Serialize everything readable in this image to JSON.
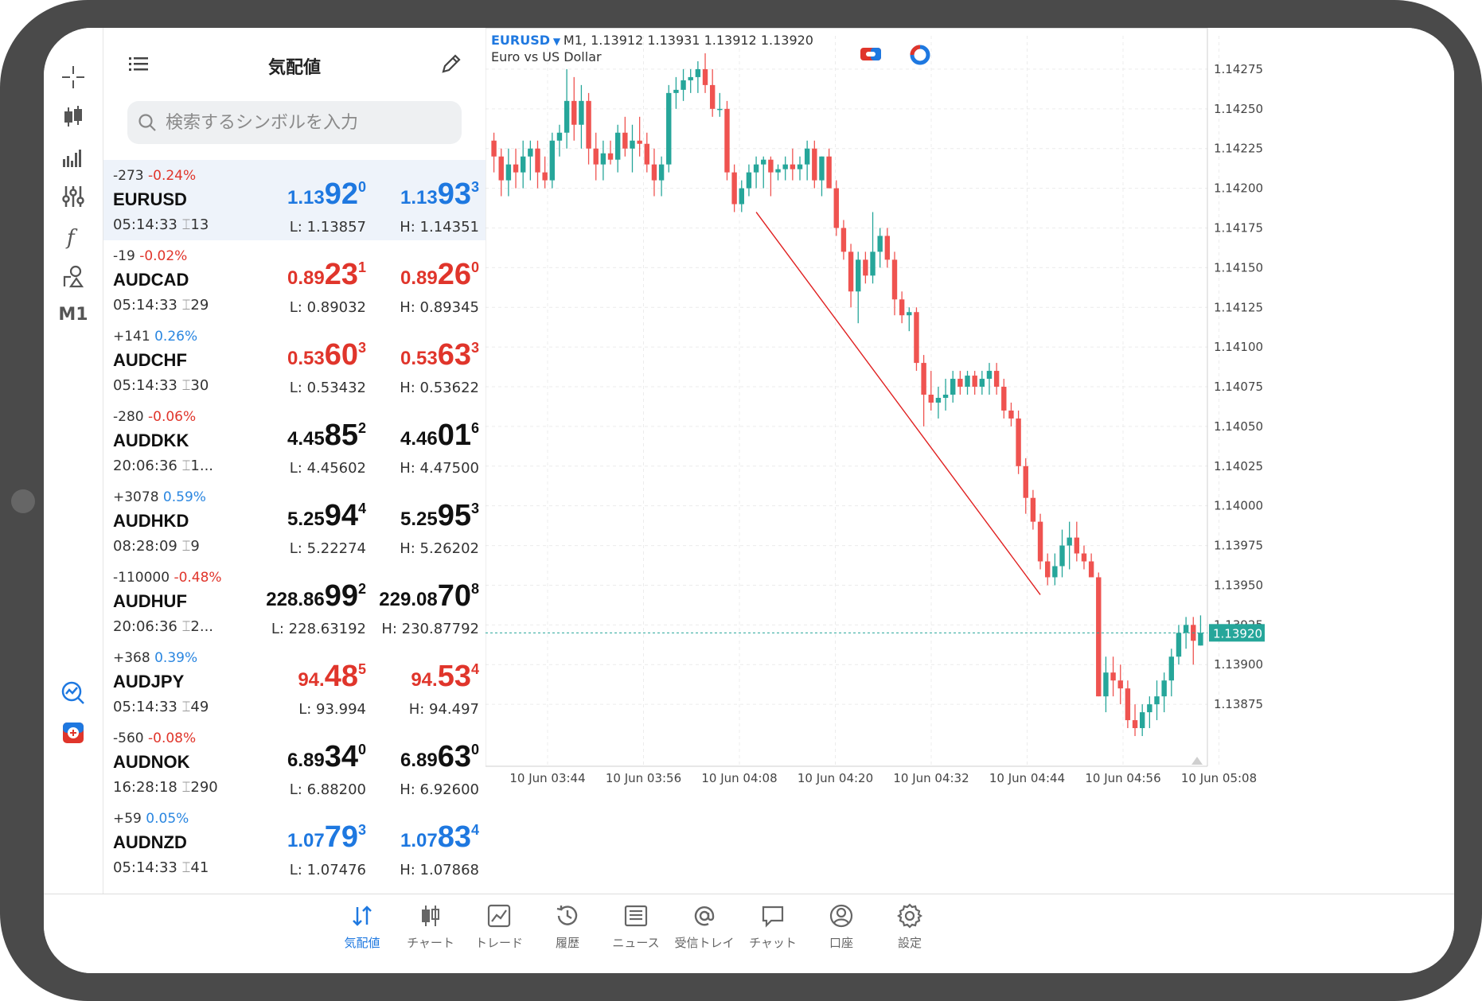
{
  "toolbar": {
    "timeframe": "M1"
  },
  "quotes": {
    "title": "気配値",
    "search_placeholder": "検索するシンボルを入力",
    "rows": [
      {
        "change": "-273",
        "pct": "-0.24%",
        "dir": "neg",
        "symbol": "EURUSD",
        "time": "05:14:33",
        "spread": "13",
        "color": "blue",
        "bid_a": "1.13",
        "bid_b": "92",
        "bid_c": "0",
        "ask_a": "1.13",
        "ask_b": "93",
        "ask_c": "3",
        "low": "L: 1.13857",
        "high": "H: 1.14351"
      },
      {
        "change": "-19",
        "pct": "-0.02%",
        "dir": "neg",
        "symbol": "AUDCAD",
        "time": "05:14:33",
        "spread": "29",
        "color": "red",
        "bid_a": "0.89",
        "bid_b": "23",
        "bid_c": "1",
        "ask_a": "0.89",
        "ask_b": "26",
        "ask_c": "0",
        "low": "L: 0.89032",
        "high": "H: 0.89345"
      },
      {
        "change": "+141",
        "pct": "0.26%",
        "dir": "pos",
        "symbol": "AUDCHF",
        "time": "05:14:33",
        "spread": "30",
        "color": "red",
        "bid_a": "0.53",
        "bid_b": "60",
        "bid_c": "3",
        "ask_a": "0.53",
        "ask_b": "63",
        "ask_c": "3",
        "low": "L: 0.53432",
        "high": "H: 0.53622"
      },
      {
        "change": "-280",
        "pct": "-0.06%",
        "dir": "neg",
        "symbol": "AUDDKK",
        "time": "20:06:36",
        "spread": "1...",
        "color": "black",
        "bid_a": "4.45",
        "bid_b": "85",
        "bid_c": "2",
        "ask_a": "4.46",
        "ask_b": "01",
        "ask_c": "6",
        "low": "L: 4.45602",
        "high": "H: 4.47500"
      },
      {
        "change": "+3078",
        "pct": "0.59%",
        "dir": "pos",
        "symbol": "AUDHKD",
        "time": "08:28:09",
        "spread": "9",
        "color": "black",
        "bid_a": "5.25",
        "bid_b": "94",
        "bid_c": "4",
        "ask_a": "5.25",
        "ask_b": "95",
        "ask_c": "3",
        "low": "L: 5.22274",
        "high": "H: 5.26202"
      },
      {
        "change": "-110000",
        "pct": "-0.48%",
        "dir": "neg",
        "symbol": "AUDHUF",
        "time": "20:06:36",
        "spread": "2...",
        "color": "black",
        "bid_a": "228.86",
        "bid_b": "99",
        "bid_c": "2",
        "ask_a": "229.08",
        "ask_b": "70",
        "ask_c": "8",
        "low": "L: 228.63192",
        "high": "H: 230.87792"
      },
      {
        "change": "+368",
        "pct": "0.39%",
        "dir": "pos",
        "symbol": "AUDJPY",
        "time": "05:14:33",
        "spread": "49",
        "color": "red",
        "bid_a": "94.",
        "bid_b": "48",
        "bid_c": "5",
        "ask_a": "94.",
        "ask_b": "53",
        "ask_c": "4",
        "low": "L: 93.994",
        "high": "H: 94.497"
      },
      {
        "change": "-560",
        "pct": "-0.08%",
        "dir": "neg",
        "symbol": "AUDNOK",
        "time": "16:28:18",
        "spread": "290",
        "color": "black",
        "bid_a": "6.89",
        "bid_b": "34",
        "bid_c": "0",
        "ask_a": "6.89",
        "ask_b": "63",
        "ask_c": "0",
        "low": "L: 6.88200",
        "high": "H: 6.92600"
      },
      {
        "change": "+59",
        "pct": "0.05%",
        "dir": "pos",
        "symbol": "AUDNZD",
        "time": "05:14:33",
        "spread": "41",
        "color": "blue",
        "bid_a": "1.07",
        "bid_b": "79",
        "bid_c": "3",
        "ask_a": "1.07",
        "ask_b": "83",
        "ask_c": "4",
        "low": "L: 1.07476",
        "high": "H: 1.07868"
      }
    ]
  },
  "chart": {
    "symbol": "EURUSD",
    "ohlc_line": "M1, 1.13912 1.13931 1.13912 1.13920",
    "description": "Euro vs US Dollar",
    "current_price": "1.13920",
    "colors": {
      "bull": "#26a69a",
      "bear": "#ef5350",
      "price_line": "#26a69a",
      "trend": "#e02020"
    },
    "y_labels": [
      "1.14275",
      "1.14250",
      "1.14225",
      "1.14200",
      "1.14175",
      "1.14150",
      "1.14125",
      "1.14100",
      "1.14075",
      "1.14050",
      "1.14025",
      "1.14000",
      "1.13975",
      "1.13950",
      "1.13925",
      "1.13900",
      "1.13875"
    ],
    "x_labels": [
      "10 Jun 03:44",
      "10 Jun 03:56",
      "10 Jun 04:08",
      "10 Jun 04:20",
      "10 Jun 04:32",
      "10 Jun 04:44",
      "10 Jun 04:56",
      "10 Jun 05:08"
    ]
  },
  "chart_data": {
    "type": "candlestick",
    "ylim": [
      1.1385,
      1.1429
    ],
    "trendline": {
      "from": {
        "time": "10 Jun 04:09",
        "price": 1.14185
      },
      "to": {
        "time": "10 Jun 04:48",
        "price": 1.13944
      }
    },
    "candles": [
      [
        1.1423,
        1.14235,
        1.1421,
        1.1422
      ],
      [
        1.1422,
        1.14225,
        1.14195,
        1.14205
      ],
      [
        1.14205,
        1.14225,
        1.14195,
        1.14215
      ],
      [
        1.14215,
        1.14225,
        1.142,
        1.1421
      ],
      [
        1.1421,
        1.1423,
        1.142,
        1.1422
      ],
      [
        1.1422,
        1.1423,
        1.14205,
        1.14225
      ],
      [
        1.14225,
        1.1423,
        1.142,
        1.1421
      ],
      [
        1.1421,
        1.1422,
        1.142,
        1.14205
      ],
      [
        1.14205,
        1.14235,
        1.142,
        1.1423
      ],
      [
        1.1423,
        1.1424,
        1.1422,
        1.14235
      ],
      [
        1.14235,
        1.14275,
        1.14225,
        1.14255
      ],
      [
        1.14255,
        1.1427,
        1.1423,
        1.1424
      ],
      [
        1.1424,
        1.14265,
        1.14225,
        1.14255
      ],
      [
        1.14255,
        1.1426,
        1.14215,
        1.14225
      ],
      [
        1.14225,
        1.14235,
        1.14205,
        1.14215
      ],
      [
        1.14215,
        1.1423,
        1.14205,
        1.14222
      ],
      [
        1.14222,
        1.1423,
        1.14215,
        1.14218
      ],
      [
        1.14218,
        1.1424,
        1.1421,
        1.14235
      ],
      [
        1.14235,
        1.14245,
        1.1422,
        1.14225
      ],
      [
        1.14225,
        1.1424,
        1.1421,
        1.1423
      ],
      [
        1.1423,
        1.14245,
        1.1422,
        1.14228
      ],
      [
        1.14228,
        1.14235,
        1.1421,
        1.14215
      ],
      [
        1.14215,
        1.14225,
        1.14195,
        1.14205
      ],
      [
        1.14205,
        1.1422,
        1.14195,
        1.14215
      ],
      [
        1.14215,
        1.14265,
        1.1421,
        1.1426
      ],
      [
        1.1426,
        1.1427,
        1.1425,
        1.14262
      ],
      [
        1.14262,
        1.14275,
        1.14255,
        1.14268
      ],
      [
        1.14268,
        1.14275,
        1.1426,
        1.1427
      ],
      [
        1.1427,
        1.1428,
        1.1426,
        1.14275
      ],
      [
        1.14275,
        1.14285,
        1.1426,
        1.14265
      ],
      [
        1.14265,
        1.14275,
        1.14245,
        1.1425
      ],
      [
        1.1425,
        1.1426,
        1.14245,
        1.1425
      ],
      [
        1.1425,
        1.14255,
        1.14205,
        1.1421
      ],
      [
        1.1421,
        1.14215,
        1.14185,
        1.1419
      ],
      [
        1.1419,
        1.14205,
        1.14185,
        1.142
      ],
      [
        1.142,
        1.14215,
        1.14195,
        1.1421
      ],
      [
        1.1421,
        1.1422,
        1.142,
        1.14215
      ],
      [
        1.14215,
        1.1422,
        1.142,
        1.14218
      ],
      [
        1.14218,
        1.1422,
        1.14195,
        1.1421
      ],
      [
        1.1421,
        1.14215,
        1.14205,
        1.14212
      ],
      [
        1.14212,
        1.1422,
        1.14205,
        1.14215
      ],
      [
        1.14215,
        1.14225,
        1.14205,
        1.14212
      ],
      [
        1.14212,
        1.1422,
        1.14205,
        1.14215
      ],
      [
        1.14215,
        1.1423,
        1.14205,
        1.14225
      ],
      [
        1.14225,
        1.1423,
        1.142,
        1.14205
      ],
      [
        1.14205,
        1.1422,
        1.14195,
        1.1422
      ],
      [
        1.1422,
        1.14225,
        1.142,
        1.142
      ],
      [
        1.142,
        1.14205,
        1.1417,
        1.14175
      ],
      [
        1.14175,
        1.1418,
        1.14155,
        1.1416
      ],
      [
        1.1416,
        1.14165,
        1.14125,
        1.14135
      ],
      [
        1.14135,
        1.1416,
        1.14115,
        1.14155
      ],
      [
        1.14155,
        1.1416,
        1.1414,
        1.14145
      ],
      [
        1.14145,
        1.14185,
        1.1414,
        1.1416
      ],
      [
        1.1416,
        1.14175,
        1.1415,
        1.1417
      ],
      [
        1.1417,
        1.14175,
        1.1415,
        1.14155
      ],
      [
        1.14155,
        1.1416,
        1.1412,
        1.1413
      ],
      [
        1.1413,
        1.14135,
        1.14115,
        1.1412
      ],
      [
        1.1412,
        1.14125,
        1.1411,
        1.14122
      ],
      [
        1.14122,
        1.14125,
        1.14085,
        1.1409
      ],
      [
        1.1409,
        1.14095,
        1.1405,
        1.1407
      ],
      [
        1.1407,
        1.14085,
        1.1406,
        1.14065
      ],
      [
        1.14065,
        1.14075,
        1.14055,
        1.14068
      ],
      [
        1.14068,
        1.1408,
        1.1406,
        1.1407
      ],
      [
        1.1407,
        1.14085,
        1.14065,
        1.1408
      ],
      [
        1.1408,
        1.14085,
        1.1407,
        1.14075
      ],
      [
        1.14075,
        1.14085,
        1.1407,
        1.14082
      ],
      [
        1.14082,
        1.14085,
        1.1407,
        1.14075
      ],
      [
        1.14075,
        1.14085,
        1.1407,
        1.1408
      ],
      [
        1.1408,
        1.1409,
        1.1407,
        1.14085
      ],
      [
        1.14085,
        1.1409,
        1.1407,
        1.14075
      ],
      [
        1.14075,
        1.1408,
        1.14055,
        1.1406
      ],
      [
        1.1406,
        1.14065,
        1.1405,
        1.14055
      ],
      [
        1.14055,
        1.1406,
        1.1402,
        1.14025
      ],
      [
        1.14025,
        1.1403,
        1.13995,
        1.14005
      ],
      [
        1.14005,
        1.1401,
        1.13985,
        1.1399
      ],
      [
        1.1399,
        1.13995,
        1.1396,
        1.13965
      ],
      [
        1.13965,
        1.1397,
        1.1395,
        1.13955
      ],
      [
        1.13955,
        1.1397,
        1.1395,
        1.13962
      ],
      [
        1.13962,
        1.13985,
        1.13955,
        1.13975
      ],
      [
        1.13975,
        1.1399,
        1.1396,
        1.1398
      ],
      [
        1.1398,
        1.1399,
        1.13965,
        1.1397
      ],
      [
        1.1397,
        1.13975,
        1.1396,
        1.13965
      ],
      [
        1.13965,
        1.1397,
        1.13955,
        1.13955
      ],
      [
        1.13955,
        1.13958,
        1.1388,
        1.1388
      ],
      [
        1.1388,
        1.13905,
        1.1387,
        1.13895
      ],
      [
        1.13895,
        1.13905,
        1.1388,
        1.1389
      ],
      [
        1.1389,
        1.139,
        1.13875,
        1.13885
      ],
      [
        1.13885,
        1.1389,
        1.1386,
        1.13865
      ],
      [
        1.13865,
        1.13875,
        1.13855,
        1.1386
      ],
      [
        1.1386,
        1.13875,
        1.13855,
        1.1387
      ],
      [
        1.1387,
        1.1388,
        1.1386,
        1.13875
      ],
      [
        1.13875,
        1.1389,
        1.13865,
        1.1388
      ],
      [
        1.1388,
        1.13895,
        1.1387,
        1.1389
      ],
      [
        1.1389,
        1.1391,
        1.1388,
        1.13905
      ],
      [
        1.13905,
        1.13925,
        1.139,
        1.1392
      ],
      [
        1.1392,
        1.1393,
        1.1391,
        1.13925
      ],
      [
        1.13925,
        1.1393,
        1.139,
        1.13915
      ],
      [
        1.13912,
        1.13931,
        1.13912,
        1.1392
      ]
    ]
  },
  "tabs": [
    {
      "label": "気配値",
      "icon": "quotes-icon"
    },
    {
      "label": "チャート",
      "icon": "chart-icon"
    },
    {
      "label": "トレード",
      "icon": "trade-icon"
    },
    {
      "label": "履歴",
      "icon": "history-icon"
    },
    {
      "label": "ニュース",
      "icon": "news-icon"
    },
    {
      "label": "受信トレイ",
      "icon": "mail-icon"
    },
    {
      "label": "チャット",
      "icon": "chat-icon"
    },
    {
      "label": "口座",
      "icon": "account-icon"
    },
    {
      "label": "設定",
      "icon": "settings-icon"
    }
  ]
}
